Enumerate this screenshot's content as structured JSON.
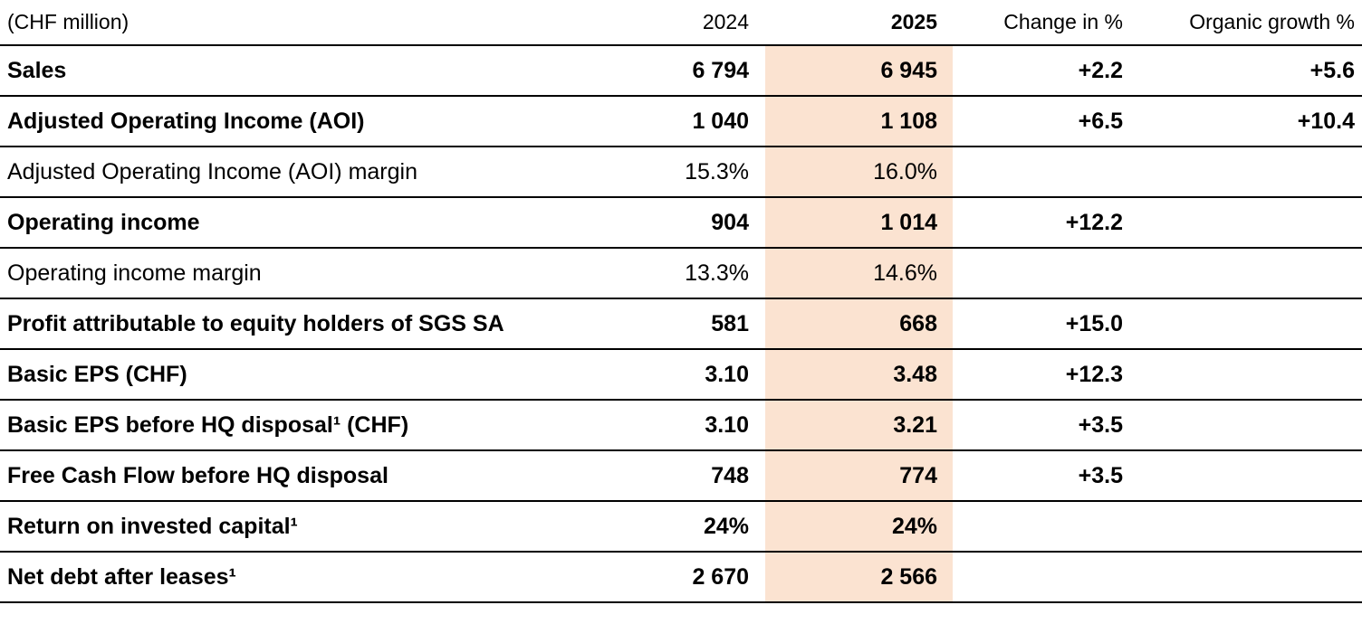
{
  "page": {
    "background": "#ffffff",
    "highlight_color": "#fbe3d1"
  },
  "table": {
    "unit_label": "(CHF million)",
    "col_2024": "2024",
    "col_2025": "2025",
    "col_change": "Change in %",
    "col_organic": "Organic growth %",
    "rows": [
      {
        "label": "Sales",
        "y2024": "6 794",
        "y2025": "6 945",
        "change": "+2.2",
        "organic": "+5.6"
      },
      {
        "label": "Adjusted Operating Income (AOI)",
        "y2024": "1 040",
        "y2025": "1 108",
        "change": "+6.5",
        "organic": "+10.4"
      },
      {
        "label": "Adjusted Operating Income (AOI) margin",
        "y2024": "15.3%",
        "y2025": "16.0%",
        "change": "",
        "organic": ""
      },
      {
        "label": "Operating income",
        "y2024": "904",
        "y2025": "1 014",
        "change": "+12.2",
        "organic": ""
      },
      {
        "label": "Operating income margin",
        "y2024": "13.3%",
        "y2025": "14.6%",
        "change": "",
        "organic": ""
      },
      {
        "label": "Profit attributable to equity holders of SGS SA",
        "y2024": "581",
        "y2025": "668",
        "change": "+15.0",
        "organic": ""
      },
      {
        "label": "Basic EPS (CHF)",
        "y2024": "3.10",
        "y2025": "3.48",
        "change": "+12.3",
        "organic": ""
      },
      {
        "label": "Basic EPS before HQ disposal¹ (CHF)",
        "y2024": "3.10",
        "y2025": "3.21",
        "change": "+3.5",
        "organic": ""
      },
      {
        "label": "Free Cash Flow before HQ disposal",
        "y2024": "748",
        "y2025": "774",
        "change": "+3.5",
        "organic": ""
      },
      {
        "label": "Return on invested capital¹",
        "y2024": "24%",
        "y2025": "24%",
        "change": "",
        "organic": ""
      },
      {
        "label": "Net debt after leases¹",
        "y2024": "2 670",
        "y2025": "2 566",
        "change": "",
        "organic": ""
      }
    ]
  }
}
